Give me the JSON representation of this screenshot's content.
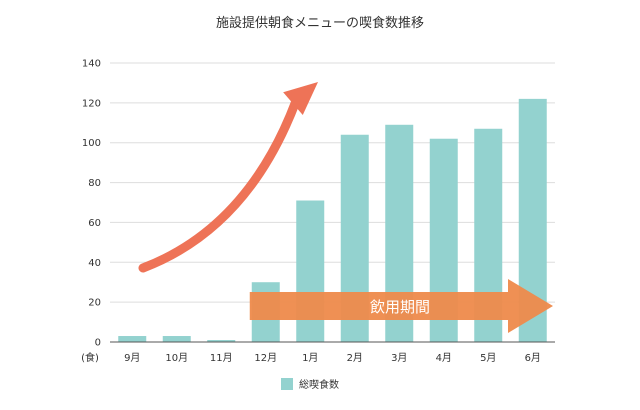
{
  "chart_data": {
    "type": "bar",
    "title": "施設提供朝食メニューの喫食数推移",
    "ylabel": "(食)",
    "categories": [
      "9月",
      "10月",
      "11月",
      "12月",
      "1月",
      "2月",
      "3月",
      "4月",
      "5月",
      "6月"
    ],
    "series": [
      {
        "name": "総喫食数",
        "values": [
          3,
          3,
          1,
          30,
          71,
          104,
          109,
          102,
          107,
          122
        ]
      }
    ],
    "ylim": [
      0,
      140
    ],
    "yticks": [
      0,
      20,
      40,
      60,
      80,
      100,
      120,
      140
    ],
    "grid": true,
    "legend": "bottom",
    "annotations": {
      "period_label": "飲用期間"
    },
    "colors": {
      "bar": "#93d2cf",
      "band": "#ee8a4b",
      "curve_arrow": "#ee7357",
      "grid": "#dddddd",
      "axis": "#555555"
    }
  }
}
